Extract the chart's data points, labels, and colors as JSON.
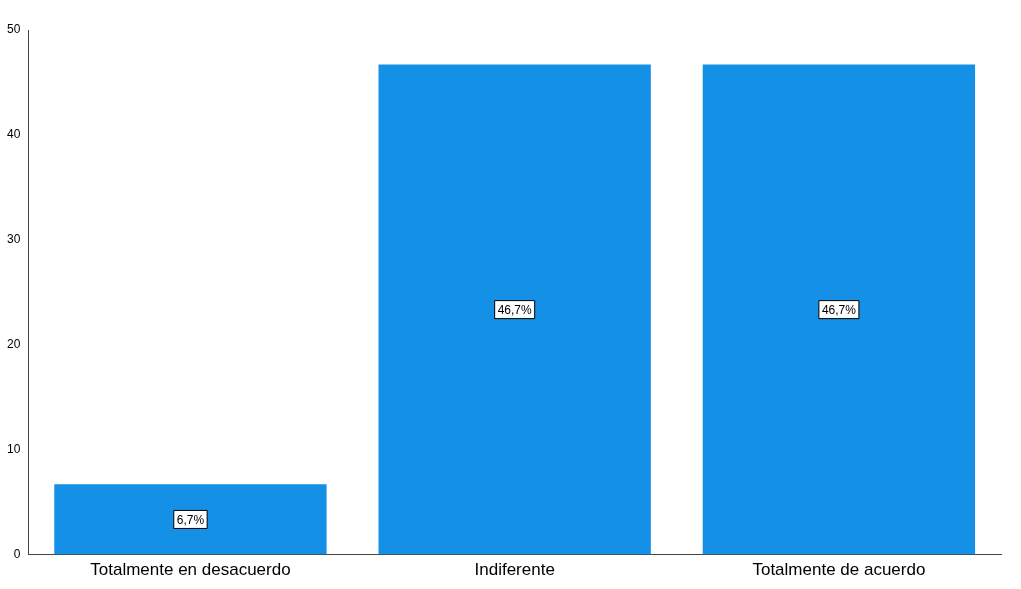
{
  "chart_data": {
    "type": "bar",
    "categories": [
      "Totalmente en desacuerdo",
      "Indiferente",
      "Totalmente de acuerdo"
    ],
    "values": [
      6.7,
      46.7,
      46.7
    ],
    "color": "#1490e6",
    "value_labels": [
      "6,7%",
      "46,7%",
      "46,7%"
    ],
    "ylim": [
      0,
      50
    ],
    "yticks": [
      0,
      10,
      20,
      30,
      40,
      50
    ],
    "grid": false,
    "legend": false
  }
}
